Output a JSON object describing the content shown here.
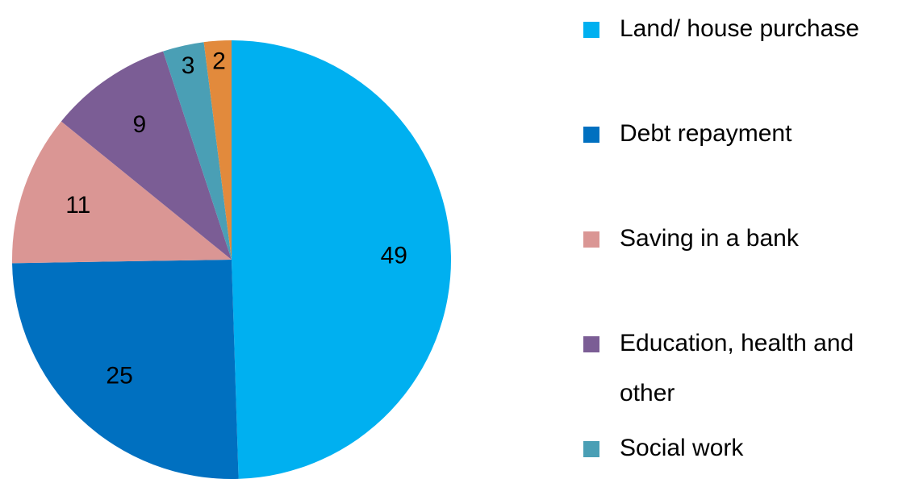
{
  "chart_data": {
    "type": "pie",
    "categories": [
      "Land/ house purchase",
      "Debt repayment",
      "Saving in a bank",
      "Education, health and other",
      "Social work",
      null
    ],
    "values": [
      49,
      25,
      11,
      9,
      3,
      2
    ],
    "colors": [
      "#00b0f0",
      "#0070c0",
      "#da9694",
      "#7b5d95",
      "#4a9fb5",
      "#e28a3c"
    ],
    "legend": "right"
  }
}
